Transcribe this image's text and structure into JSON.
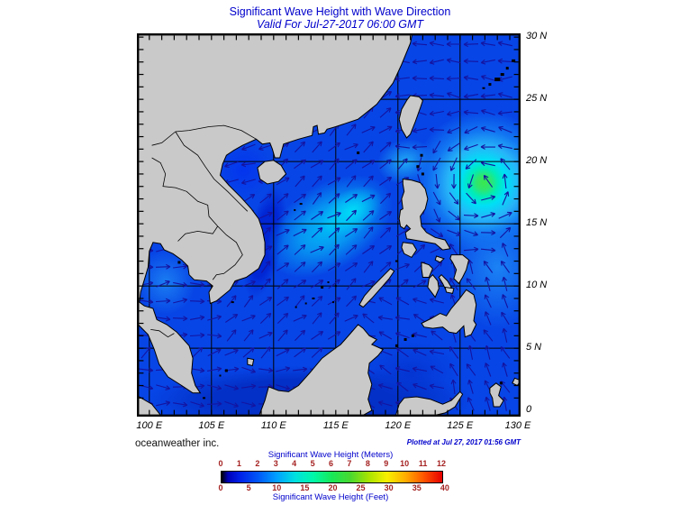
{
  "page": {
    "title": "Significant Wave Height with Wave Direction",
    "subtitle": "Valid For Jul-27-2017 06:00 GMT",
    "credit": "oceanweather inc.",
    "plotted": "Plotted at Jul 27, 2017 01:56 GMT"
  },
  "map": {
    "extent": {
      "lon_min": 99.0,
      "lon_max": 129.9,
      "lat_min": -0.5,
      "lat_max": 30.3
    },
    "x_axis": {
      "ticks": [
        {
          "lon": 100,
          "label": "100 E"
        },
        {
          "lon": 105,
          "label": "105 E"
        },
        {
          "lon": 110,
          "label": "110 E"
        },
        {
          "lon": 115,
          "label": "115 E"
        },
        {
          "lon": 120,
          "label": "120 E"
        },
        {
          "lon": 125,
          "label": "125 E"
        },
        {
          "lon": 130,
          "label": "130 E"
        }
      ]
    },
    "y_axis": {
      "ticks": [
        {
          "lat": 30,
          "label": "30 N"
        },
        {
          "lat": 25,
          "label": "25 N"
        },
        {
          "lat": 20,
          "label": "20 N"
        },
        {
          "lat": 15,
          "label": "15 N"
        },
        {
          "lat": 10,
          "label": "10 N"
        },
        {
          "lat": 5,
          "label": "5 N"
        },
        {
          "lat": 0,
          "label": "0"
        }
      ]
    },
    "grid_lons": [
      100,
      105,
      110,
      115,
      120,
      125
    ],
    "grid_lats": [
      5,
      10,
      15,
      20,
      25
    ],
    "storm_center": {
      "lon": 126.9,
      "lat": 18.3,
      "rotation": "counterclockwise"
    },
    "colors": {
      "land": "#c9c9c9",
      "coastline": "#000000",
      "ocean_base": "#0745e6",
      "arrow": "#1414a0",
      "grid": "#000000",
      "storm_core_green": "#3ae84e",
      "swell_band_cyan": "#00dcf8"
    }
  },
  "colorbar": {
    "title_meters": "Significant Wave Height (Meters)",
    "title_feet": "Significant Wave Height (Feet)",
    "meters_ticks": [
      0,
      1,
      2,
      3,
      4,
      5,
      6,
      7,
      8,
      9,
      10,
      11,
      12
    ],
    "feet_ticks": [
      0,
      5,
      10,
      15,
      20,
      25,
      30,
      35,
      40
    ],
    "tick_color": "#a52222",
    "stops": [
      {
        "m": 0.0,
        "color": "#000000"
      },
      {
        "m": 0.35,
        "color": "#0000b8"
      },
      {
        "m": 1.0,
        "color": "#0020e8"
      },
      {
        "m": 2.0,
        "color": "#0058f8"
      },
      {
        "m": 3.0,
        "color": "#00a0ff"
      },
      {
        "m": 4.0,
        "color": "#00e0e0"
      },
      {
        "m": 5.0,
        "color": "#00f8a8"
      },
      {
        "m": 6.0,
        "color": "#18e858"
      },
      {
        "m": 7.0,
        "color": "#48d830"
      },
      {
        "m": 8.0,
        "color": "#a8e400"
      },
      {
        "m": 9.0,
        "color": "#f8f000"
      },
      {
        "m": 10.0,
        "color": "#ffae00"
      },
      {
        "m": 11.0,
        "color": "#ff5400"
      },
      {
        "m": 12.0,
        "color": "#e60000"
      }
    ]
  }
}
